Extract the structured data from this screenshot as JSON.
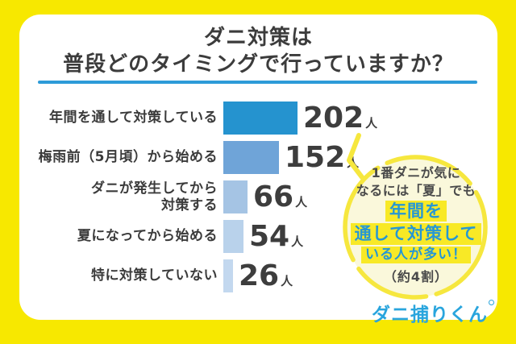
{
  "chart_data": {
    "type": "bar",
    "orientation": "horizontal",
    "title": "ダニ対策は普段どのタイミングで行っていますか？",
    "title_lines": "ダニ対策は\n普段どのタイミングで行っていますか？",
    "categories": [
      "年間を通して対策している",
      "梅雨前（5月頃）から始める",
      "ダニが発生してから\n対策する",
      "夏になってから始める",
      "特に対策していない"
    ],
    "values": [
      202,
      152,
      66,
      54,
      26
    ],
    "unit": "人",
    "xlim": [
      0,
      202
    ],
    "grid": false,
    "legend": "none",
    "bar_colors": [
      "#2593CF",
      "#6FA4D8",
      "#A5C4E4",
      "#B9D2EB",
      "#C3D8EF"
    ],
    "annotation": {
      "intro_line1": "1番ダニが気に",
      "intro_line2": "なるには「夏」でも",
      "highlight_line1": "年間を",
      "highlight_line2": "通して対策して",
      "highlight_line3": "いる人が多い！",
      "note": "（約4割）"
    }
  },
  "footer": {
    "logo_text": "ダニ捕りくん"
  },
  "colors": {
    "page_background": "#F7E800",
    "card_background": "#FFFFFF",
    "title_underline": "#2D9BD8",
    "bubble_fill": "#FAF8DB",
    "bubble_border": "#F6E73E",
    "highlight_background": "#F8E926",
    "highlight_text": "#2697D4",
    "logo_blue": "#29A5DD"
  }
}
